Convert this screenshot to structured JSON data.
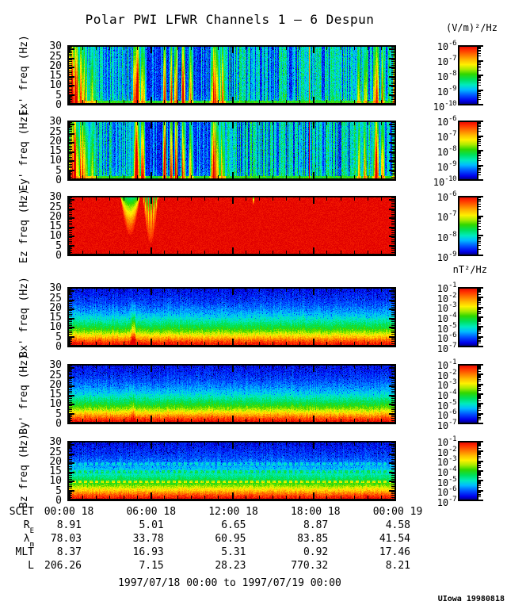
{
  "title": "Polar PWI LFWR Channels 1 — 6 Despun",
  "units": {
    "electric": "(V/m)²/Hz",
    "magnetic": "nT²/Hz"
  },
  "footer": {
    "range": "1997/07/18 00:00 to 1997/07/19 00:00",
    "credit": "UIowa 19980818"
  },
  "chart_data": {
    "type": "heatmap",
    "title": "Polar PWI LFWR Channels 1 — 6 Despun",
    "time_range": "1997/07/18 00:00 to 1997/07/19 00:00",
    "x_axis": {
      "label": "SCET",
      "tick_labels": [
        "00:00 18",
        "06:00 18",
        "12:00 18",
        "18:00 18",
        "00:00 19"
      ],
      "hours": 24,
      "major_tick_hours": 6,
      "minor_tick_hours": 1
    },
    "y_axis": {
      "units": "Hz",
      "ticks": [
        0,
        5,
        10,
        15,
        20,
        25,
        30
      ],
      "range": [
        0,
        31
      ]
    },
    "panels": [
      {
        "id": "ex",
        "ylabel": "Ex' freq (Hz)",
        "kind": "E",
        "seed": 1137,
        "colorbar": {
          "unit": "(V/m)²/Hz",
          "scale": "log",
          "exponents": [
            "-6",
            "-7",
            "-8",
            "-9",
            "-10"
          ]
        },
        "content_summary": "Broadband electric bursts near 00:30, 05:00, 07:00-09:30, 10:45-11:30, 17:40 and 21:30-23:30 UT over diffuse striped background; intense band below ~2 Hz"
      },
      {
        "id": "ey",
        "ylabel": "Ey' freq (Hz)",
        "kind": "E",
        "seed": 7741,
        "colorbar": {
          "unit": "(V/m)²/Hz",
          "scale": "log",
          "exponents": [
            "-6",
            "-7",
            "-8",
            "-9",
            "-10"
          ]
        },
        "content_summary": "Same burst structure as Ex with stronger low-frequency intensity at start of day"
      },
      {
        "id": "ez",
        "ylabel": "Ez freq (Hz)",
        "kind": "Ez",
        "seed": 9203,
        "colorbar": {
          "unit": "(V/m)²/Hz",
          "scale": "log",
          "exponents": [
            "-6",
            "-7",
            "-8",
            "-9"
          ]
        },
        "content_summary": "Saturated (off-scale red) everywhere except two notches near 04:30-06:00 UT reaching down to ~7-12 Hz and a narrow dip near 13:30 UT"
      },
      {
        "id": "bx",
        "ylabel": "Bx' freq (Hz)",
        "kind": "B",
        "seed": 3319,
        "colorbar": {
          "unit": "nT²/Hz",
          "scale": "log",
          "exponents": [
            "-1",
            "-2",
            "-3",
            "-4",
            "-5",
            "-6",
            "-7"
          ]
        },
        "features": {
          "wisp": {
            "c": 0.2,
            "w": 0.008,
            "top_hz": 26,
            "amp": 0.26
          }
        },
        "content_summary": "Smooth falling magnetic spectrum: intense below ~5 Hz fading to weak above ~20 Hz; faint rising tone near 05:00 UT"
      },
      {
        "id": "by",
        "ylabel": "By' freq (Hz)",
        "kind": "B",
        "seed": 5527,
        "colorbar": {
          "unit": "nT²/Hz",
          "scale": "log",
          "exponents": [
            "-1",
            "-2",
            "-3",
            "-4",
            "-5",
            "-6",
            "-7"
          ]
        },
        "features": {
          "wisp": {
            "c": 0.2,
            "w": 0.008,
            "top_hz": 24,
            "amp": 0.14
          }
        },
        "content_summary": "Same falling spectrum as Bx with weaker 05:00 UT feature"
      },
      {
        "id": "bz",
        "ylabel": "Bz freq (Hz)",
        "kind": "B",
        "seed": 8861,
        "colorbar": {
          "unit": "nT²/Hz",
          "scale": "log",
          "exponents": [
            "-1",
            "-2",
            "-3",
            "-4",
            "-5",
            "-6",
            "-7"
          ]
        },
        "features": {
          "bands": [
            {
              "hz": 10,
              "amp": 0.16
            },
            {
              "hz": 15,
              "amp": 0.11
            },
            {
              "hz": 19,
              "amp": 0.09
            }
          ]
        },
        "content_summary": "Falling spectrum with intermittent narrowband enhancements near 10, 15 and 19 Hz"
      }
    ],
    "ephemeris": {
      "row_labels": [
        {
          "main": "SCET",
          "sub": ""
        },
        {
          "main": "R",
          "sub": "E"
        },
        {
          "main": "λ",
          "sub": "m"
        },
        {
          "main": "MLT",
          "sub": ""
        },
        {
          "main": "L",
          "sub": ""
        }
      ],
      "rows": [
        [
          "00:00 18",
          "06:00 18",
          "12:00 18",
          "18:00 18",
          "00:00 19"
        ],
        [
          "8.91",
          "5.01",
          "6.65",
          "8.87",
          "4.58"
        ],
        [
          "78.03",
          "33.78",
          "60.95",
          "83.85",
          "41.54"
        ],
        [
          "8.37",
          "16.93",
          "5.31",
          "0.92",
          "17.46"
        ],
        [
          "206.26",
          "7.15",
          "28.23",
          "770.32",
          "8.21"
        ]
      ]
    },
    "render": {
      "colormap": [
        [
          0.0,
          0,
          0,
          100
        ],
        [
          0.07,
          0,
          0,
          235
        ],
        [
          0.16,
          0,
          80,
          255
        ],
        [
          0.26,
          0,
          190,
          255
        ],
        [
          0.34,
          0,
          235,
          190
        ],
        [
          0.43,
          0,
          225,
          90
        ],
        [
          0.52,
          50,
          215,
          0
        ],
        [
          0.6,
          170,
          235,
          0
        ],
        [
          0.68,
          255,
          240,
          0
        ],
        [
          0.76,
          255,
          185,
          0
        ],
        [
          0.85,
          255,
          110,
          0
        ],
        [
          0.93,
          255,
          45,
          0
        ],
        [
          1.0,
          225,
          0,
          0
        ]
      ],
      "e_regions": [
        {
          "f0": 0.0,
          "f1": 0.06,
          "level": 0.14,
          "density": 0.2,
          "amp": 0.12
        },
        {
          "f0": 0.06,
          "f1": 0.2,
          "level": 0.17,
          "density": 0.55,
          "amp": 0.22
        },
        {
          "f0": 0.2,
          "f1": 0.34,
          "level": 0.1,
          "density": 0.25,
          "amp": 0.15
        },
        {
          "f0": 0.34,
          "f1": 0.47,
          "level": 0.12,
          "density": 0.35,
          "amp": 0.18
        },
        {
          "f0": 0.47,
          "f1": 0.93,
          "level": 0.13,
          "density": 0.75,
          "amp": 0.26
        },
        {
          "f0": 0.93,
          "f1": 1.01,
          "level": 0.15,
          "density": 0.6,
          "amp": 0.22
        }
      ],
      "e_bursts": [
        {
          "c": 0.018,
          "w": 0.03,
          "a": 1.0
        },
        {
          "c": 0.045,
          "w": 0.022,
          "a": 0.8
        },
        {
          "c": 0.075,
          "w": 0.018,
          "a": 0.5
        },
        {
          "c": 0.21,
          "w": 0.016,
          "a": 1.0
        },
        {
          "c": 0.228,
          "w": 0.01,
          "a": 0.85
        },
        {
          "c": 0.295,
          "w": 0.007,
          "a": 1.0
        },
        {
          "c": 0.315,
          "w": 0.006,
          "a": 0.9
        },
        {
          "c": 0.33,
          "w": 0.007,
          "a": 1.0
        },
        {
          "c": 0.352,
          "w": 0.008,
          "a": 0.95
        },
        {
          "c": 0.375,
          "w": 0.01,
          "a": 0.7
        },
        {
          "c": 0.448,
          "w": 0.018,
          "a": 1.0
        },
        {
          "c": 0.47,
          "w": 0.012,
          "a": 0.7
        },
        {
          "c": 0.735,
          "w": 0.0025,
          "a": 1.0,
          "line": true
        },
        {
          "c": 0.885,
          "w": 0.008,
          "a": 0.65
        },
        {
          "c": 0.905,
          "w": 0.007,
          "a": 0.7
        },
        {
          "c": 0.938,
          "w": 0.012,
          "a": 1.0
        },
        {
          "c": 0.958,
          "w": 0.008,
          "a": 0.75
        },
        {
          "c": 0.995,
          "w": 0.01,
          "a": 0.7
        }
      ],
      "ez_notches": [
        {
          "c": 0.19,
          "w": 0.03,
          "dhz": 11,
          "striped": false
        },
        {
          "c": 0.252,
          "w": 0.024,
          "dhz": 7,
          "striped": true
        },
        {
          "c": 0.565,
          "w": 0.004,
          "dhz": 26,
          "striped": false
        }
      ],
      "b_profile": [
        [
          0,
          1.0
        ],
        [
          1.5,
          0.97
        ],
        [
          3,
          0.9
        ],
        [
          4.5,
          0.8
        ],
        [
          6,
          0.7
        ],
        [
          8,
          0.57
        ],
        [
          10,
          0.48
        ],
        [
          13,
          0.38
        ],
        [
          16,
          0.29
        ],
        [
          19,
          0.22
        ],
        [
          23,
          0.15
        ],
        [
          27,
          0.11
        ],
        [
          31,
          0.08
        ]
      ]
    }
  }
}
